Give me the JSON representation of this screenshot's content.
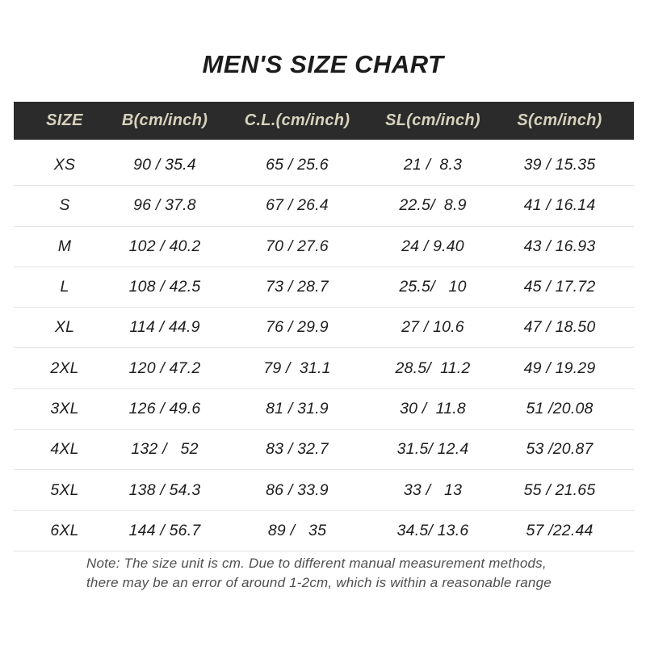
{
  "title": "MEN'S SIZE CHART",
  "table": {
    "columns": [
      "SIZE",
      "B(cm/inch)",
      "C.L.(cm/inch)",
      "SL(cm/inch)",
      "S(cm/inch)"
    ],
    "rows": [
      {
        "size": "XS",
        "b": "90 / 35.4",
        "cl": "65 / 25.6",
        "sl": "21 /  8.3",
        "s": "39 / 15.35"
      },
      {
        "size": "S",
        "b": "96 / 37.8",
        "cl": "67 / 26.4",
        "sl": "22.5/  8.9",
        "s": "41 / 16.14"
      },
      {
        "size": "M",
        "b": "102 / 40.2",
        "cl": "70 / 27.6",
        "sl": "24 / 9.40",
        "s": "43 / 16.93"
      },
      {
        "size": "L",
        "b": "108 / 42.5",
        "cl": "73 / 28.7",
        "sl": "25.5/   10",
        "s": "45 / 17.72"
      },
      {
        "size": "XL",
        "b": "114 / 44.9",
        "cl": "76 / 29.9",
        "sl": "27 / 10.6",
        "s": "47 / 18.50"
      },
      {
        "size": "2XL",
        "b": "120 / 47.2",
        "cl": "79 /  31.1",
        "sl": "28.5/  11.2",
        "s": "49 / 19.29"
      },
      {
        "size": "3XL",
        "b": "126 / 49.6",
        "cl": "81 / 31.9",
        "sl": "30 /  11.8",
        "s": "51 /20.08"
      },
      {
        "size": "4XL",
        "b": "132 /   52",
        "cl": "83 / 32.7",
        "sl": "31.5/ 12.4",
        "s": "53 /20.87"
      },
      {
        "size": "5XL",
        "b": "138 / 54.3",
        "cl": "86 / 33.9",
        "sl": "33 /   13",
        "s": "55 / 21.65"
      },
      {
        "size": "6XL",
        "b": "144 / 56.7",
        "cl": "89 /   35",
        "sl": "34.5/ 13.6",
        "s": "57 /22.44"
      }
    ]
  },
  "note": {
    "line1": "Note: The size unit is cm. Due to different manual measurement methods,",
    "line2": "there may be an error of around 1-2cm, which is within a reasonable range"
  },
  "colors": {
    "header_bg": "#2b2b2b",
    "header_text": "#d6d2bd",
    "body_text": "#1d1d1d",
    "divider": "#e4e4e4",
    "note_text": "#4f4f4f",
    "title_text": "#1c1c1c",
    "page_bg": "#ffffff"
  }
}
